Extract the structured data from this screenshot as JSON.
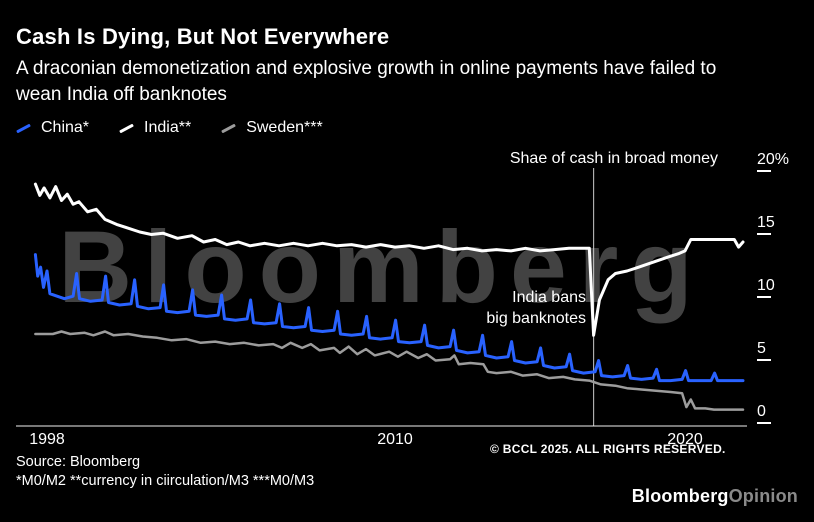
{
  "header": {
    "title": "Cash Is Dying, But Not Everywhere",
    "subtitle": "A draconian demonetization and explosive growth in online payments have failed to wean India off banknotes"
  },
  "legend": [
    {
      "label": "China*",
      "color": "#2962ff"
    },
    {
      "label": "India**",
      "color": "#ffffff"
    },
    {
      "label": "Sweden***",
      "color": "#9c9c9c"
    }
  ],
  "chart_data": {
    "type": "line",
    "axis_title": "Shae of cash in broad money",
    "watermark": "Bloomberg",
    "y_axis": {
      "range": [
        0,
        20
      ],
      "ticks": [
        {
          "label": "20%",
          "value": 20
        },
        {
          "label": "15",
          "value": 15
        },
        {
          "label": "10",
          "value": 10
        },
        {
          "label": "5",
          "value": 5
        },
        {
          "label": "0",
          "value": 0
        }
      ]
    },
    "x_axis": {
      "range": [
        1997.6,
        2022.2
      ],
      "ticks": [
        {
          "label": "1998",
          "value": 1998
        },
        {
          "label": "2010",
          "value": 2010
        },
        {
          "label": "2020",
          "value": 2020
        }
      ]
    },
    "event_line_x": 2016.85,
    "annotation": {
      "lines": [
        "India bans",
        "big banknotes"
      ]
    },
    "series": [
      {
        "name": "China*",
        "color": "#2962ff",
        "points": [
          [
            1997.6,
            13.6
          ],
          [
            1997.68,
            11.9
          ],
          [
            1997.78,
            12.6
          ],
          [
            1997.88,
            11.0
          ],
          [
            1998.0,
            12.3
          ],
          [
            1998.1,
            10.5
          ],
          [
            1998.35,
            10.3
          ],
          [
            1998.6,
            10.1
          ],
          [
            1998.9,
            10.3
          ],
          [
            1999.02,
            12.1
          ],
          [
            1999.12,
            10.1
          ],
          [
            1999.5,
            9.9
          ],
          [
            1999.9,
            10.0
          ],
          [
            2000.02,
            11.9
          ],
          [
            2000.12,
            9.8
          ],
          [
            2000.5,
            9.6
          ],
          [
            2000.9,
            9.7
          ],
          [
            2001.02,
            11.6
          ],
          [
            2001.12,
            9.5
          ],
          [
            2001.5,
            9.3
          ],
          [
            2001.9,
            9.4
          ],
          [
            2002.02,
            11.2
          ],
          [
            2002.12,
            9.1
          ],
          [
            2002.5,
            9.0
          ],
          [
            2002.9,
            9.1
          ],
          [
            2003.02,
            10.8
          ],
          [
            2003.12,
            8.8
          ],
          [
            2003.5,
            8.7
          ],
          [
            2003.9,
            8.8
          ],
          [
            2004.02,
            10.4
          ],
          [
            2004.12,
            8.5
          ],
          [
            2004.5,
            8.4
          ],
          [
            2004.9,
            8.5
          ],
          [
            2005.02,
            10.0
          ],
          [
            2005.12,
            8.2
          ],
          [
            2005.5,
            8.1
          ],
          [
            2005.9,
            8.2
          ],
          [
            2006.02,
            9.7
          ],
          [
            2006.12,
            7.9
          ],
          [
            2006.5,
            7.8
          ],
          [
            2006.9,
            7.9
          ],
          [
            2007.02,
            9.4
          ],
          [
            2007.12,
            7.6
          ],
          [
            2007.5,
            7.5
          ],
          [
            2007.9,
            7.6
          ],
          [
            2008.02,
            9.1
          ],
          [
            2008.12,
            7.3
          ],
          [
            2008.5,
            7.2
          ],
          [
            2008.9,
            7.3
          ],
          [
            2009.02,
            8.7
          ],
          [
            2009.12,
            7.0
          ],
          [
            2009.5,
            6.9
          ],
          [
            2009.9,
            7.0
          ],
          [
            2010.02,
            8.4
          ],
          [
            2010.12,
            6.7
          ],
          [
            2010.5,
            6.6
          ],
          [
            2010.9,
            6.7
          ],
          [
            2011.02,
            8.0
          ],
          [
            2011.12,
            6.4
          ],
          [
            2011.5,
            6.2
          ],
          [
            2011.9,
            6.3
          ],
          [
            2012.02,
            7.6
          ],
          [
            2012.12,
            6.0
          ],
          [
            2012.5,
            5.8
          ],
          [
            2012.9,
            5.9
          ],
          [
            2013.02,
            7.2
          ],
          [
            2013.12,
            5.6
          ],
          [
            2013.5,
            5.4
          ],
          [
            2013.9,
            5.5
          ],
          [
            2014.02,
            6.7
          ],
          [
            2014.12,
            5.2
          ],
          [
            2014.5,
            5.0
          ],
          [
            2014.9,
            5.1
          ],
          [
            2015.02,
            6.2
          ],
          [
            2015.12,
            4.8
          ],
          [
            2015.5,
            4.6
          ],
          [
            2015.9,
            4.7
          ],
          [
            2016.02,
            5.7
          ],
          [
            2016.12,
            4.4
          ],
          [
            2016.5,
            4.2
          ],
          [
            2016.9,
            4.3
          ],
          [
            2017.02,
            5.2
          ],
          [
            2017.12,
            4.0
          ],
          [
            2017.5,
            3.9
          ],
          [
            2017.9,
            4.0
          ],
          [
            2018.02,
            4.8
          ],
          [
            2018.12,
            3.8
          ],
          [
            2018.5,
            3.7
          ],
          [
            2018.9,
            3.8
          ],
          [
            2019.02,
            4.5
          ],
          [
            2019.12,
            3.6
          ],
          [
            2019.5,
            3.6
          ],
          [
            2019.9,
            3.7
          ],
          [
            2020.02,
            4.4
          ],
          [
            2020.12,
            3.6
          ],
          [
            2020.5,
            3.6
          ],
          [
            2020.9,
            3.6
          ],
          [
            2021.02,
            4.2
          ],
          [
            2021.12,
            3.6
          ],
          [
            2021.6,
            3.6
          ],
          [
            2022.0,
            3.6
          ]
        ]
      },
      {
        "name": "India**",
        "color": "#ffffff",
        "points": [
          [
            1997.6,
            19.2
          ],
          [
            1997.75,
            18.3
          ],
          [
            1997.9,
            18.9
          ],
          [
            1998.1,
            18.1
          ],
          [
            1998.3,
            19.0
          ],
          [
            1998.5,
            17.9
          ],
          [
            1998.7,
            18.4
          ],
          [
            1998.9,
            17.6
          ],
          [
            1999.1,
            17.8
          ],
          [
            1999.4,
            17.0
          ],
          [
            1999.7,
            17.2
          ],
          [
            2000.0,
            16.4
          ],
          [
            2000.4,
            16.0
          ],
          [
            2000.8,
            15.7
          ],
          [
            2001.2,
            15.4
          ],
          [
            2001.6,
            15.2
          ],
          [
            2002.0,
            15.3
          ],
          [
            2002.5,
            14.9
          ],
          [
            2003.0,
            15.1
          ],
          [
            2003.4,
            14.6
          ],
          [
            2003.8,
            14.8
          ],
          [
            2004.2,
            14.4
          ],
          [
            2004.6,
            14.6
          ],
          [
            2005.0,
            14.3
          ],
          [
            2005.5,
            14.5
          ],
          [
            2006.0,
            14.3
          ],
          [
            2006.5,
            14.5
          ],
          [
            2007.0,
            14.3
          ],
          [
            2007.5,
            14.5
          ],
          [
            2008.0,
            14.3
          ],
          [
            2008.5,
            14.4
          ],
          [
            2009.0,
            14.2
          ],
          [
            2009.5,
            14.4
          ],
          [
            2010.0,
            14.2
          ],
          [
            2010.5,
            14.3
          ],
          [
            2011.0,
            14.1
          ],
          [
            2011.5,
            14.3
          ],
          [
            2012.0,
            14.0
          ],
          [
            2012.5,
            14.1
          ],
          [
            2013.0,
            13.9
          ],
          [
            2013.5,
            14.0
          ],
          [
            2014.0,
            13.9
          ],
          [
            2014.5,
            14.1
          ],
          [
            2015.0,
            13.9
          ],
          [
            2015.5,
            14.0
          ],
          [
            2016.0,
            14.1
          ],
          [
            2016.4,
            14.1
          ],
          [
            2016.7,
            14.1
          ],
          [
            2016.85,
            7.2
          ],
          [
            2017.05,
            10.0
          ],
          [
            2017.35,
            11.6
          ],
          [
            2017.6,
            12.1
          ],
          [
            2018.0,
            12.3
          ],
          [
            2018.4,
            12.6
          ],
          [
            2018.9,
            13.0
          ],
          [
            2019.4,
            13.4
          ],
          [
            2019.8,
            13.7
          ],
          [
            2020.0,
            13.9
          ],
          [
            2020.2,
            14.8
          ],
          [
            2020.6,
            14.8
          ],
          [
            2021.0,
            14.8
          ],
          [
            2021.4,
            14.8
          ],
          [
            2021.7,
            14.8
          ],
          [
            2021.85,
            14.2
          ],
          [
            2022.0,
            14.6
          ]
        ]
      },
      {
        "name": "Sweden***",
        "color": "#9c9c9c",
        "points": [
          [
            1997.6,
            7.3
          ],
          [
            1998.2,
            7.3
          ],
          [
            1998.5,
            7.5
          ],
          [
            1998.8,
            7.3
          ],
          [
            1999.3,
            7.4
          ],
          [
            1999.6,
            7.2
          ],
          [
            2000.0,
            7.5
          ],
          [
            2000.3,
            7.2
          ],
          [
            2000.8,
            7.3
          ],
          [
            2001.3,
            7.1
          ],
          [
            2001.8,
            7.0
          ],
          [
            2002.3,
            6.8
          ],
          [
            2002.8,
            6.9
          ],
          [
            2003.3,
            6.6
          ],
          [
            2003.8,
            6.7
          ],
          [
            2004.3,
            6.5
          ],
          [
            2004.8,
            6.6
          ],
          [
            2005.3,
            6.4
          ],
          [
            2005.8,
            6.5
          ],
          [
            2006.1,
            6.2
          ],
          [
            2006.4,
            6.6
          ],
          [
            2006.8,
            6.2
          ],
          [
            2007.1,
            6.5
          ],
          [
            2007.4,
            6.0
          ],
          [
            2007.9,
            6.2
          ],
          [
            2008.1,
            5.8
          ],
          [
            2008.4,
            6.3
          ],
          [
            2008.7,
            5.7
          ],
          [
            2009.0,
            6.1
          ],
          [
            2009.3,
            5.6
          ],
          [
            2009.8,
            5.9
          ],
          [
            2010.1,
            5.5
          ],
          [
            2010.4,
            5.9
          ],
          [
            2010.8,
            5.4
          ],
          [
            2011.1,
            5.7
          ],
          [
            2011.4,
            5.2
          ],
          [
            2011.9,
            5.3
          ],
          [
            2012.05,
            5.6
          ],
          [
            2012.2,
            4.9
          ],
          [
            2012.6,
            5.0
          ],
          [
            2013.05,
            4.9
          ],
          [
            2013.2,
            4.3
          ],
          [
            2013.5,
            4.2
          ],
          [
            2014.0,
            4.3
          ],
          [
            2014.4,
            4.0
          ],
          [
            2014.9,
            4.1
          ],
          [
            2015.3,
            3.8
          ],
          [
            2015.8,
            3.9
          ],
          [
            2016.2,
            3.7
          ],
          [
            2016.7,
            3.6
          ],
          [
            2017.1,
            3.3
          ],
          [
            2017.6,
            3.2
          ],
          [
            2018.0,
            3.0
          ],
          [
            2018.5,
            2.9
          ],
          [
            2019.0,
            2.8
          ],
          [
            2019.5,
            2.7
          ],
          [
            2019.9,
            2.6
          ],
          [
            2020.05,
            1.5
          ],
          [
            2020.2,
            2.1
          ],
          [
            2020.35,
            1.4
          ],
          [
            2020.7,
            1.4
          ],
          [
            2021.0,
            1.3
          ],
          [
            2021.5,
            1.3
          ],
          [
            2022.0,
            1.3
          ]
        ]
      }
    ]
  },
  "overlay": {
    "copyright": "© BCCL 2025. ALL RIGHTS RESERVED."
  },
  "footer": {
    "source": "Source: Bloomberg",
    "notes": "*M0/M2 **currency in ciirculation/M3 ***M0/M3",
    "brand": {
      "first": "Bloomberg",
      "second": "Opinion"
    }
  }
}
